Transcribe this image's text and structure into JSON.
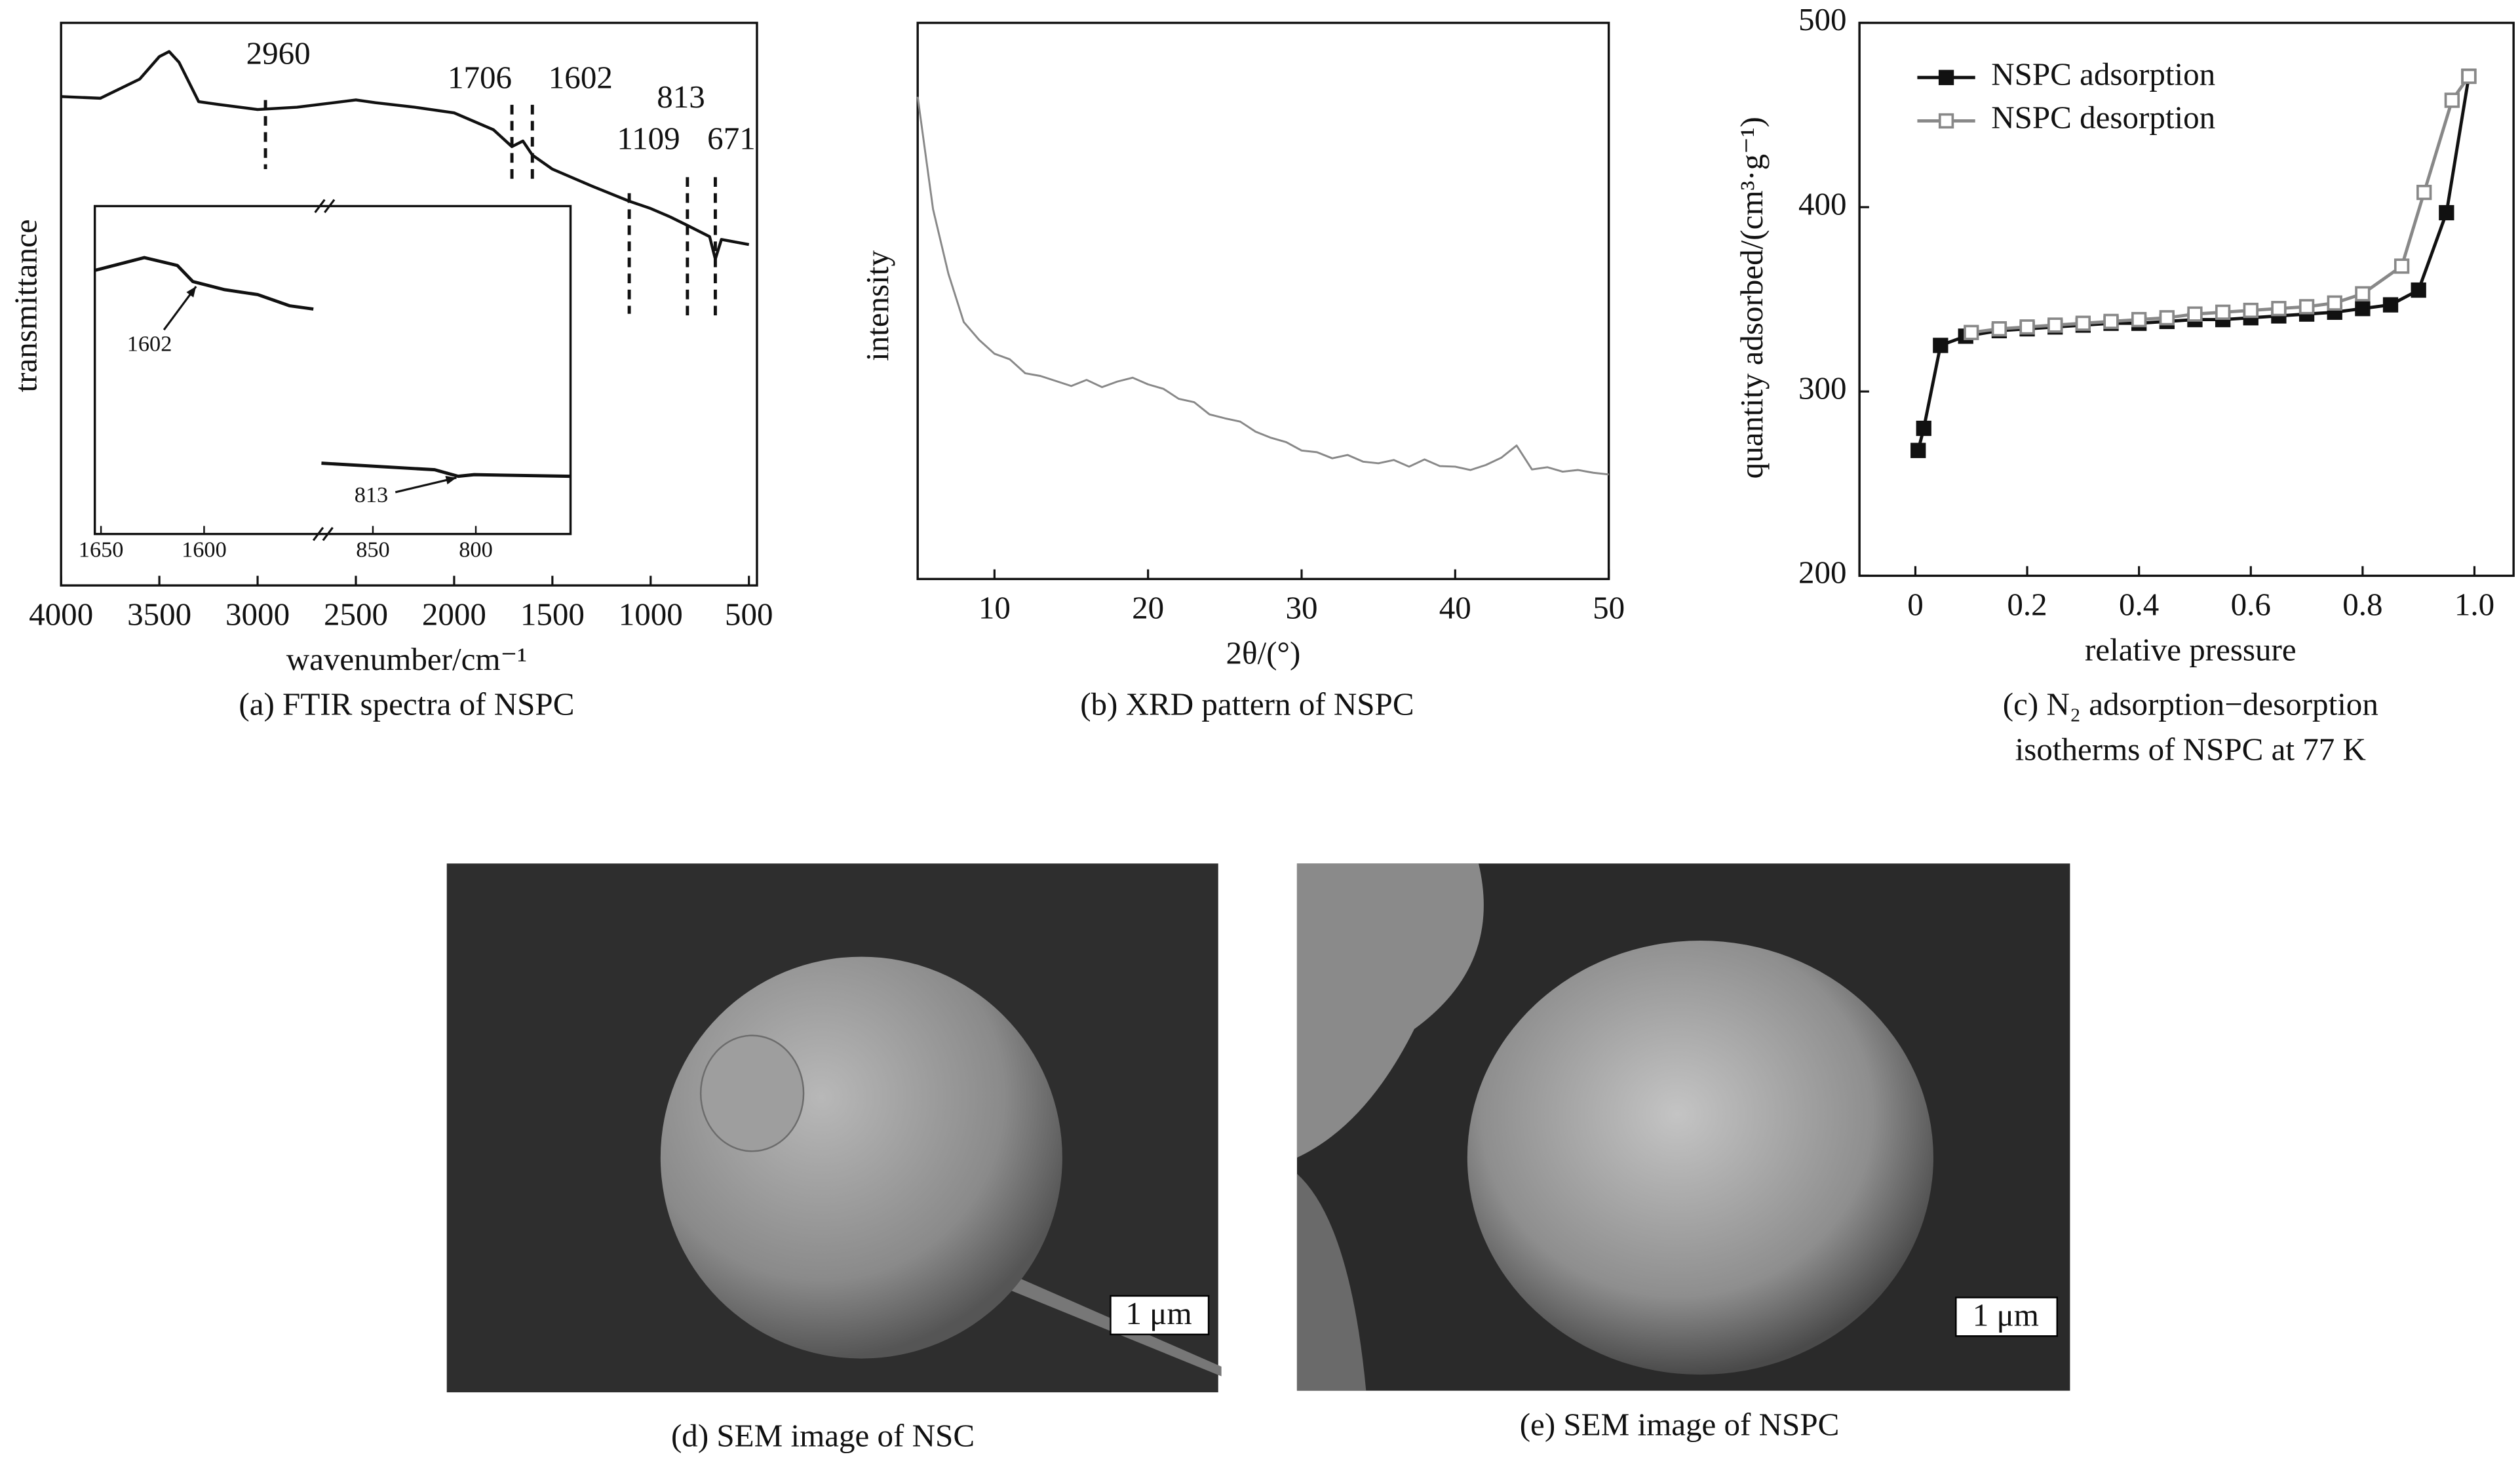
{
  "chart_data": [
    {
      "type": "line",
      "caption": "(a) FTIR spectra of NSPC",
      "xlabel": "wavenumber/cm⁻¹",
      "ylabel": "transmittance",
      "xlim": [
        4000,
        500
      ],
      "xticks": [
        4000,
        3500,
        3000,
        2500,
        2000,
        1500,
        1000,
        500
      ],
      "ylim": [
        0,
        100
      ],
      "series": [
        {
          "color": "#111",
          "x": [
            4000,
            3800,
            3600,
            3500,
            3450,
            3400,
            3300,
            3200,
            3000,
            2800,
            2500,
            2400,
            2200,
            2000,
            1800,
            1706,
            1650,
            1602,
            1500,
            1300,
            1109,
            1000,
            900,
            813,
            700,
            671,
            640,
            500
          ],
          "values": [
            86.9,
            86.6,
            90,
            94,
            94.9,
            93,
            86,
            85.5,
            84.6,
            85,
            86.3,
            85.8,
            85,
            84,
            81,
            78,
            79,
            76.5,
            74,
            71,
            68.3,
            67,
            65.5,
            64,
            62,
            58,
            61.5,
            60.6
          ]
        }
      ],
      "peaks": [
        2960,
        1706,
        1602,
        1109,
        813,
        671
      ],
      "inset": {
        "xlim": [
          [
            1653,
            1547
          ],
          [
            875,
            754
          ]
        ],
        "xticks": [
          [
            1650,
            1600
          ],
          [
            850,
            800
          ]
        ],
        "ylim": [
          0,
          100
        ],
        "series": [
          {
            "color": "#111",
            "x": [
              1653,
              1629,
              1613,
              1605.5,
              1590,
              1574,
              1558.6,
              1547
            ],
            "values": [
              80.4,
              84.3,
              81.9,
              77,
              74.5,
              73,
              69.6,
              68.6
            ]
          },
          {
            "color": "#111",
            "x": [
              875,
              820,
              808.6,
              800.8,
              754
            ],
            "values": [
              21.6,
              19.6,
              17.6,
              18.1,
              17.6
            ]
          }
        ],
        "annotations": [
          1602,
          813
        ]
      }
    },
    {
      "type": "line",
      "caption": "(b) XRD pattern of NSPC",
      "xlabel": "2θ/(°)",
      "ylabel": "intensity",
      "xlim": [
        5,
        50
      ],
      "xticks": [
        10,
        20,
        30,
        40,
        50
      ],
      "ylim": [
        0,
        100
      ],
      "series": [
        {
          "color": "#888",
          "x": [
            5,
            6,
            7,
            8,
            9,
            10,
            11,
            12,
            13,
            14,
            15,
            16,
            17,
            18,
            19,
            20,
            21,
            22,
            23,
            24,
            25,
            26,
            27,
            28,
            29,
            30,
            31,
            32,
            33,
            34,
            35,
            36,
            37,
            38,
            39,
            40,
            41,
            42,
            43,
            44,
            45,
            46,
            47,
            48,
            49,
            50
          ],
          "values": [
            86.7,
            66.5,
            54.9,
            46.2,
            43,
            40.5,
            39.5,
            37,
            36.5,
            35.6,
            34.7,
            35.8,
            34.5,
            35.5,
            36.2,
            35,
            34.2,
            32.4,
            31.8,
            29.6,
            28.9,
            28.3,
            26.5,
            25.4,
            24.6,
            23.1,
            22.8,
            21.7,
            22.3,
            21.1,
            20.8,
            21.4,
            20.2,
            21.5,
            20.3,
            20.2,
            19.6,
            20.5,
            21.8,
            24,
            19.7,
            20.1,
            19.3,
            19.6,
            19.1,
            18.8
          ]
        }
      ]
    },
    {
      "type": "scatter-line",
      "caption": [
        "(c) N₂ adsorption−desorption",
        "isotherms of NSPC at 77 K"
      ],
      "xlabel": "relative pressure",
      "ylabel": "quantity adsorbed/(cm³·g⁻¹)",
      "xlim": [
        -0.1,
        1.07
      ],
      "xticks": [
        0,
        0.2,
        0.4,
        0.6,
        0.8,
        {
          "value": 1,
          "label": "1.0"
        }
      ],
      "ylim": [
        200,
        500
      ],
      "yticks": [
        200,
        300,
        400,
        500
      ],
      "legend": "upper left",
      "series": [
        {
          "name": "NSPC adsorption",
          "color": "#111",
          "marker": "filled",
          "x": [
            0.005,
            0.015,
            0.045,
            0.09,
            0.15,
            0.2,
            0.25,
            0.3,
            0.35,
            0.4,
            0.45,
            0.5,
            0.55,
            0.6,
            0.65,
            0.7,
            0.75,
            0.8,
            0.85,
            0.9,
            0.95,
            0.99
          ],
          "values": [
            268,
            280,
            325,
            330,
            333,
            334,
            335,
            336,
            337,
            337,
            338,
            339,
            339,
            340,
            341,
            342,
            343,
            345,
            347,
            355,
            397,
            471
          ]
        },
        {
          "name": "NSPC desorption",
          "color": "#888",
          "marker": "open",
          "x": [
            0.99,
            0.96,
            0.91,
            0.87,
            0.8,
            0.75,
            0.7,
            0.65,
            0.6,
            0.55,
            0.5,
            0.45,
            0.4,
            0.35,
            0.3,
            0.25,
            0.2,
            0.15,
            0.1
          ],
          "values": [
            471,
            458,
            408,
            368,
            353,
            348,
            346,
            345,
            344,
            343,
            342,
            340,
            339,
            338,
            337,
            336,
            335,
            334,
            332
          ]
        }
      ]
    }
  ],
  "images": [
    {
      "caption": "(d) SEM image of NSC",
      "scale_bar": "1 μm"
    },
    {
      "caption": "(e) SEM image of NSPC",
      "scale_bar": "1 μm"
    }
  ]
}
